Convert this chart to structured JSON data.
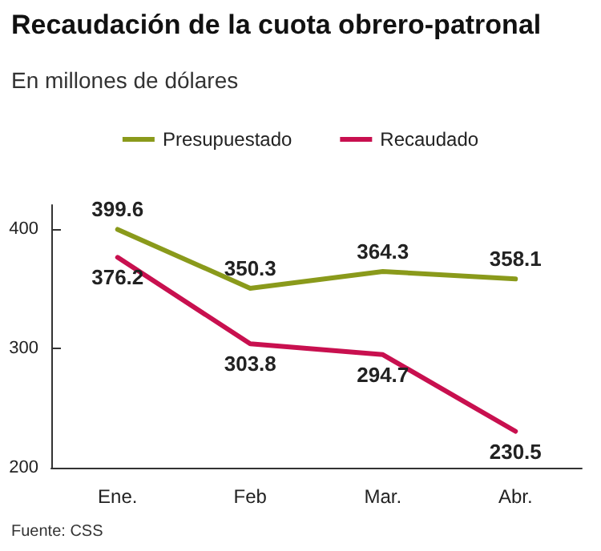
{
  "chart_data": {
    "type": "line",
    "title": "Recaudación de la cuota obrero-patronal",
    "subtitle": "En millones de dólares",
    "categories": [
      "Ene.",
      "Feb",
      "Mar.",
      "Abr."
    ],
    "series": [
      {
        "name": "Presupuestado",
        "color": "#8a9a1b",
        "values": [
          399.6,
          350.3,
          364.3,
          358.1
        ]
      },
      {
        "name": "Recaudado",
        "color": "#c8104f",
        "values": [
          376.2,
          303.8,
          294.7,
          230.5
        ]
      }
    ],
    "ylim": [
      200,
      420
    ],
    "yticks": [
      200,
      300,
      400
    ],
    "data_labels": true,
    "legend": "top",
    "marker": "none",
    "line_style": "solid",
    "grid": false,
    "annotations": [
      "Fuente: CSS"
    ]
  }
}
